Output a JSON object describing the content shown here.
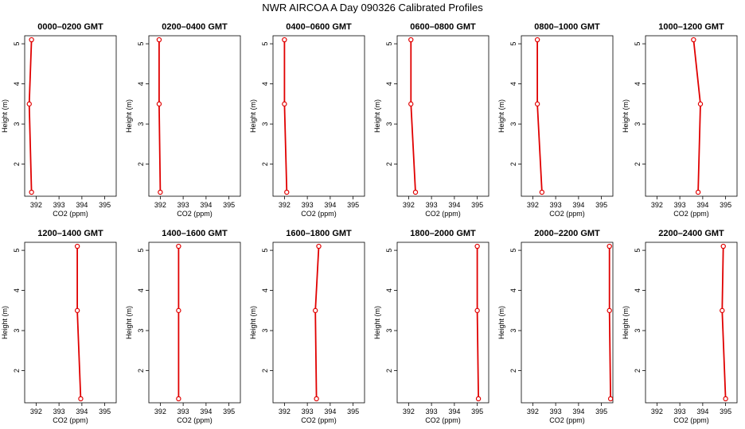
{
  "title": "NWR AIRCOA A  Day 090326  Calibrated Profiles",
  "colors": {
    "line": "#e00000",
    "marker": "#e00000",
    "frame": "#000000"
  },
  "chart_data": [
    {
      "type": "line",
      "title": "0000–0200 GMT",
      "xlabel": "CO2 (ppm)",
      "ylabel": "Height (m)",
      "xlim": [
        391.5,
        395.5
      ],
      "ylim": [
        1.2,
        5.2
      ],
      "xticks": [
        392,
        393,
        394,
        395
      ],
      "yticks": [
        2,
        3,
        4,
        5
      ],
      "points": [
        {
          "x": 391.8,
          "y": 1.3
        },
        {
          "x": 391.7,
          "y": 3.5
        },
        {
          "x": 391.8,
          "y": 5.1
        }
      ]
    },
    {
      "type": "line",
      "title": "0200–0400 GMT",
      "xlabel": "CO2 (ppm)",
      "ylabel": "Height (m)",
      "xlim": [
        391.5,
        395.5
      ],
      "ylim": [
        1.2,
        5.2
      ],
      "xticks": [
        392,
        393,
        394,
        395
      ],
      "yticks": [
        2,
        3,
        4,
        5
      ],
      "points": [
        {
          "x": 392.0,
          "y": 1.3
        },
        {
          "x": 391.95,
          "y": 3.5
        },
        {
          "x": 391.95,
          "y": 5.1
        }
      ]
    },
    {
      "type": "line",
      "title": "0400–0600 GMT",
      "xlabel": "CO2 (ppm)",
      "ylabel": "Height (m)",
      "xlim": [
        391.5,
        395.5
      ],
      "ylim": [
        1.2,
        5.2
      ],
      "xticks": [
        392,
        393,
        394,
        395
      ],
      "yticks": [
        2,
        3,
        4,
        5
      ],
      "points": [
        {
          "x": 392.1,
          "y": 1.3
        },
        {
          "x": 392.0,
          "y": 3.5
        },
        {
          "x": 392.0,
          "y": 5.1
        }
      ]
    },
    {
      "type": "line",
      "title": "0600–0800 GMT",
      "xlabel": "CO2 (ppm)",
      "ylabel": "Height (m)",
      "xlim": [
        391.5,
        395.5
      ],
      "ylim": [
        1.2,
        5.2
      ],
      "xticks": [
        392,
        393,
        394,
        395
      ],
      "yticks": [
        2,
        3,
        4,
        5
      ],
      "points": [
        {
          "x": 392.3,
          "y": 1.3
        },
        {
          "x": 392.1,
          "y": 3.5
        },
        {
          "x": 392.1,
          "y": 5.1
        }
      ]
    },
    {
      "type": "line",
      "title": "0800–1000 GMT",
      "xlabel": "CO2 (ppm)",
      "ylabel": "Height (m)",
      "xlim": [
        391.5,
        395.5
      ],
      "ylim": [
        1.2,
        5.2
      ],
      "xticks": [
        392,
        393,
        394,
        395
      ],
      "yticks": [
        2,
        3,
        4,
        5
      ],
      "points": [
        {
          "x": 392.4,
          "y": 1.3
        },
        {
          "x": 392.2,
          "y": 3.5
        },
        {
          "x": 392.2,
          "y": 5.1
        }
      ]
    },
    {
      "type": "line",
      "title": "1000–1200 GMT",
      "xlabel": "CO2 (ppm)",
      "ylabel": "Height (m)",
      "xlim": [
        391.5,
        395.5
      ],
      "ylim": [
        1.2,
        5.2
      ],
      "xticks": [
        392,
        393,
        394,
        395
      ],
      "yticks": [
        2,
        3,
        4,
        5
      ],
      "points": [
        {
          "x": 393.8,
          "y": 1.3
        },
        {
          "x": 393.9,
          "y": 3.5
        },
        {
          "x": 393.6,
          "y": 5.1
        }
      ]
    },
    {
      "type": "line",
      "title": "1200–1400 GMT",
      "xlabel": "CO2 (ppm)",
      "ylabel": "Height (m)",
      "xlim": [
        391.5,
        395.5
      ],
      "ylim": [
        1.2,
        5.2
      ],
      "xticks": [
        392,
        393,
        394,
        395
      ],
      "yticks": [
        2,
        3,
        4,
        5
      ],
      "points": [
        {
          "x": 393.95,
          "y": 1.3
        },
        {
          "x": 393.8,
          "y": 3.5
        },
        {
          "x": 393.8,
          "y": 5.1
        }
      ]
    },
    {
      "type": "line",
      "title": "1400–1600 GMT",
      "xlabel": "CO2 (ppm)",
      "ylabel": "Height (m)",
      "xlim": [
        391.5,
        395.5
      ],
      "ylim": [
        1.2,
        5.2
      ],
      "xticks": [
        392,
        393,
        394,
        395
      ],
      "yticks": [
        2,
        3,
        4,
        5
      ],
      "points": [
        {
          "x": 392.8,
          "y": 1.3
        },
        {
          "x": 392.8,
          "y": 3.5
        },
        {
          "x": 392.8,
          "y": 5.1
        }
      ]
    },
    {
      "type": "line",
      "title": "1600–1800 GMT",
      "xlabel": "CO2 (ppm)",
      "ylabel": "Height (m)",
      "xlim": [
        391.5,
        395.5
      ],
      "ylim": [
        1.2,
        5.2
      ],
      "xticks": [
        392,
        393,
        394,
        395
      ],
      "yticks": [
        2,
        3,
        4,
        5
      ],
      "points": [
        {
          "x": 393.4,
          "y": 1.3
        },
        {
          "x": 393.35,
          "y": 3.5
        },
        {
          "x": 393.5,
          "y": 5.1
        }
      ]
    },
    {
      "type": "line",
      "title": "1800–2000 GMT",
      "xlabel": "CO2 (ppm)",
      "ylabel": "Height (m)",
      "xlim": [
        391.5,
        395.5
      ],
      "ylim": [
        1.2,
        5.2
      ],
      "xticks": [
        392,
        393,
        394,
        395
      ],
      "yticks": [
        2,
        3,
        4,
        5
      ],
      "points": [
        {
          "x": 395.05,
          "y": 1.3
        },
        {
          "x": 395.0,
          "y": 3.5
        },
        {
          "x": 395.0,
          "y": 5.1
        }
      ]
    },
    {
      "type": "line",
      "title": "2000–2200 GMT",
      "xlabel": "CO2 (ppm)",
      "ylabel": "Height (m)",
      "xlim": [
        391.5,
        395.5
      ],
      "ylim": [
        1.2,
        5.2
      ],
      "xticks": [
        392,
        393,
        394,
        395
      ],
      "yticks": [
        2,
        3,
        4,
        5
      ],
      "points": [
        {
          "x": 395.4,
          "y": 1.3
        },
        {
          "x": 395.35,
          "y": 3.5
        },
        {
          "x": 395.35,
          "y": 5.1
        }
      ]
    },
    {
      "type": "line",
      "title": "2200–2400 GMT",
      "xlabel": "CO2 (ppm)",
      "ylabel": "Height (m)",
      "xlim": [
        391.5,
        395.5
      ],
      "ylim": [
        1.2,
        5.2
      ],
      "xticks": [
        392,
        393,
        394,
        395
      ],
      "yticks": [
        2,
        3,
        4,
        5
      ],
      "points": [
        {
          "x": 395.0,
          "y": 1.3
        },
        {
          "x": 394.85,
          "y": 3.5
        },
        {
          "x": 394.9,
          "y": 5.1
        }
      ]
    }
  ]
}
